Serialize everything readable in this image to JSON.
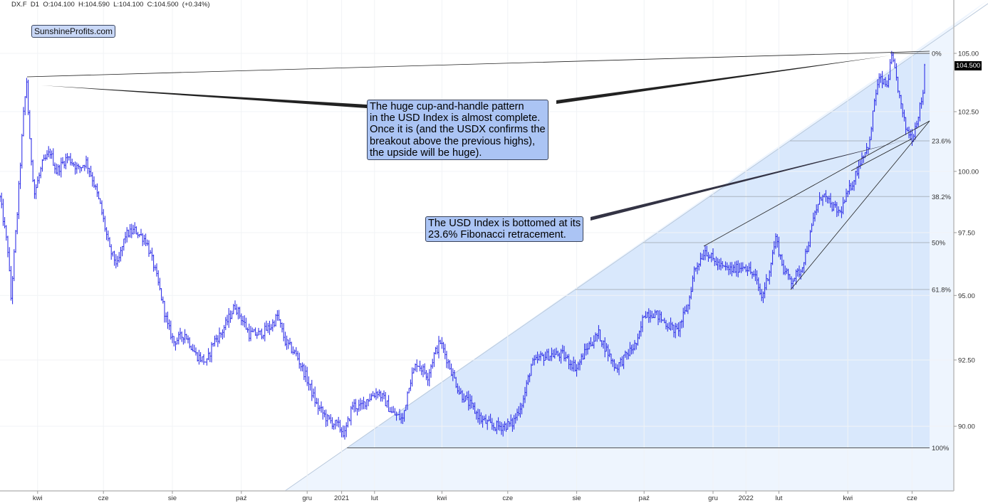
{
  "header": {
    "symbol": "DX.F",
    "interval": "D1",
    "ohlc_text": "O:104.100  H:104.590  L:104.100  C:104.500  (+0.34%)"
  },
  "brand_label": "SunshineProfits.com",
  "last_price_label": "104.500",
  "annotations": {
    "cup_handle": [
      "The huge cup-and-handle pattern",
      "in the USD Index is almost complete.",
      "Once it is (and the USDX confirms the",
      "breakout above the previous highs),",
      "the upside will be huge)."
    ],
    "fib_bottom": [
      "The USD Index is bottomed at its",
      "23.6% Fibonacci retracement."
    ]
  },
  "colors": {
    "bars": "#1f1fe6",
    "fib_zone": "#d9e8fc",
    "trend_zone": "#eef5fe",
    "note_bg": "#abc4f4"
  },
  "chart_data": {
    "type": "ohlc",
    "title": "DX.F D1",
    "xlabel": "",
    "ylabel": "",
    "scale": "log",
    "ylim": [
      87.5,
      106.5
    ],
    "y_ticks": [
      105.0,
      102.5,
      100.0,
      97.5,
      95.0,
      92.5,
      90.0
    ],
    "y_tick_labels": [
      "105.00",
      "102.50",
      "100.00",
      "97.50",
      "95.00",
      "92.50",
      "90.00"
    ],
    "x_tick_labels": [
      "kwi",
      "cze",
      "sie",
      "paź",
      "gru",
      "2021",
      "lut",
      "kwi",
      "cze",
      "sie",
      "paź",
      "gru",
      "2022",
      "lut",
      "kwi",
      "cze"
    ],
    "x_tick_bar_index": [
      24,
      66,
      110,
      154,
      196,
      218,
      239,
      282,
      324,
      368,
      411,
      455,
      476,
      497,
      541,
      582
    ],
    "fibonacci": {
      "high": 105.0,
      "low": 89.2,
      "levels": [
        {
          "label": "0%",
          "ratio": 0.0
        },
        {
          "label": "23.6%",
          "ratio": 0.236
        },
        {
          "label": "38.2%",
          "ratio": 0.382
        },
        {
          "label": "50%",
          "ratio": 0.5
        },
        {
          "label": "61.8%",
          "ratio": 0.618
        },
        {
          "label": "100%",
          "ratio": 1.0
        }
      ]
    },
    "last_close": 104.5,
    "close_keypoints": [
      [
        0,
        98.9
      ],
      [
        5,
        96.8
      ],
      [
        7,
        94.9
      ],
      [
        11,
        98.3
      ],
      [
        15,
        102.4
      ],
      [
        17,
        103.8
      ],
      [
        19,
        101.2
      ],
      [
        22,
        99.1
      ],
      [
        27,
        100.3
      ],
      [
        32,
        100.8
      ],
      [
        36,
        100.0
      ],
      [
        43,
        100.6
      ],
      [
        50,
        100.1
      ],
      [
        55,
        100.4
      ],
      [
        59,
        99.7
      ],
      [
        64,
        98.6
      ],
      [
        70,
        96.8
      ],
      [
        75,
        96.2
      ],
      [
        80,
        97.4
      ],
      [
        86,
        97.6
      ],
      [
        93,
        97.2
      ],
      [
        98,
        96.2
      ],
      [
        102,
        95.2
      ],
      [
        107,
        93.8
      ],
      [
        111,
        93.2
      ],
      [
        118,
        93.5
      ],
      [
        125,
        92.7
      ],
      [
        132,
        92.4
      ],
      [
        136,
        93.2
      ],
      [
        141,
        93.5
      ],
      [
        145,
        94.0
      ],
      [
        150,
        94.6
      ],
      [
        155,
        94.0
      ],
      [
        159,
        93.5
      ],
      [
        166,
        93.5
      ],
      [
        173,
        93.8
      ],
      [
        177,
        94.2
      ],
      [
        182,
        93.2
      ],
      [
        189,
        92.7
      ],
      [
        195,
        91.9
      ],
      [
        202,
        90.8
      ],
      [
        209,
        90.25
      ],
      [
        216,
        90.0
      ],
      [
        220,
        89.7
      ],
      [
        225,
        90.8
      ],
      [
        230,
        90.7
      ],
      [
        234,
        91.0
      ],
      [
        241,
        91.3
      ],
      [
        245,
        91.0
      ],
      [
        250,
        90.5
      ],
      [
        257,
        90.25
      ],
      [
        261,
        91.6
      ],
      [
        266,
        92.4
      ],
      [
        273,
        91.9
      ],
      [
        277,
        92.7
      ],
      [
        281,
        93.2
      ],
      [
        286,
        92.4
      ],
      [
        293,
        91.3
      ],
      [
        300,
        90.8
      ],
      [
        307,
        90.25
      ],
      [
        314,
        90.0
      ],
      [
        320,
        90.0
      ],
      [
        327,
        90.1
      ],
      [
        334,
        91.0
      ],
      [
        339,
        92.3
      ],
      [
        345,
        92.6
      ],
      [
        352,
        92.7
      ],
      [
        359,
        92.7
      ],
      [
        364,
        92.4
      ],
      [
        368,
        92.2
      ],
      [
        375,
        93.0
      ],
      [
        382,
        93.5
      ],
      [
        386,
        93.0
      ],
      [
        393,
        92.2
      ],
      [
        400,
        92.7
      ],
      [
        407,
        93.2
      ],
      [
        411,
        94.3
      ],
      [
        418,
        94.3
      ],
      [
        425,
        93.9
      ],
      [
        432,
        93.6
      ],
      [
        439,
        94.6
      ],
      [
        443,
        96.0
      ],
      [
        450,
        96.8
      ],
      [
        455,
        96.4
      ],
      [
        461,
        96.1
      ],
      [
        468,
        96.0
      ],
      [
        475,
        96.2
      ],
      [
        482,
        95.7
      ],
      [
        486,
        94.9
      ],
      [
        491,
        96.0
      ],
      [
        495,
        97.3
      ],
      [
        500,
        96.0
      ],
      [
        505,
        95.6
      ],
      [
        511,
        96.0
      ],
      [
        516,
        97.1
      ],
      [
        520,
        98.3
      ],
      [
        525,
        99.1
      ],
      [
        530,
        98.6
      ],
      [
        536,
        98.3
      ],
      [
        541,
        99.1
      ],
      [
        545,
        99.7
      ],
      [
        550,
        100.6
      ],
      [
        555,
        101.2
      ],
      [
        558,
        103.0
      ],
      [
        561,
        103.9
      ],
      [
        566,
        103.6
      ],
      [
        569,
        104.85
      ],
      [
        572,
        103.9
      ],
      [
        575,
        102.7
      ],
      [
        578,
        101.8
      ],
      [
        582,
        101.4
      ],
      [
        585,
        102.1
      ],
      [
        589,
        103.3
      ],
      [
        590,
        104.5
      ]
    ]
  }
}
